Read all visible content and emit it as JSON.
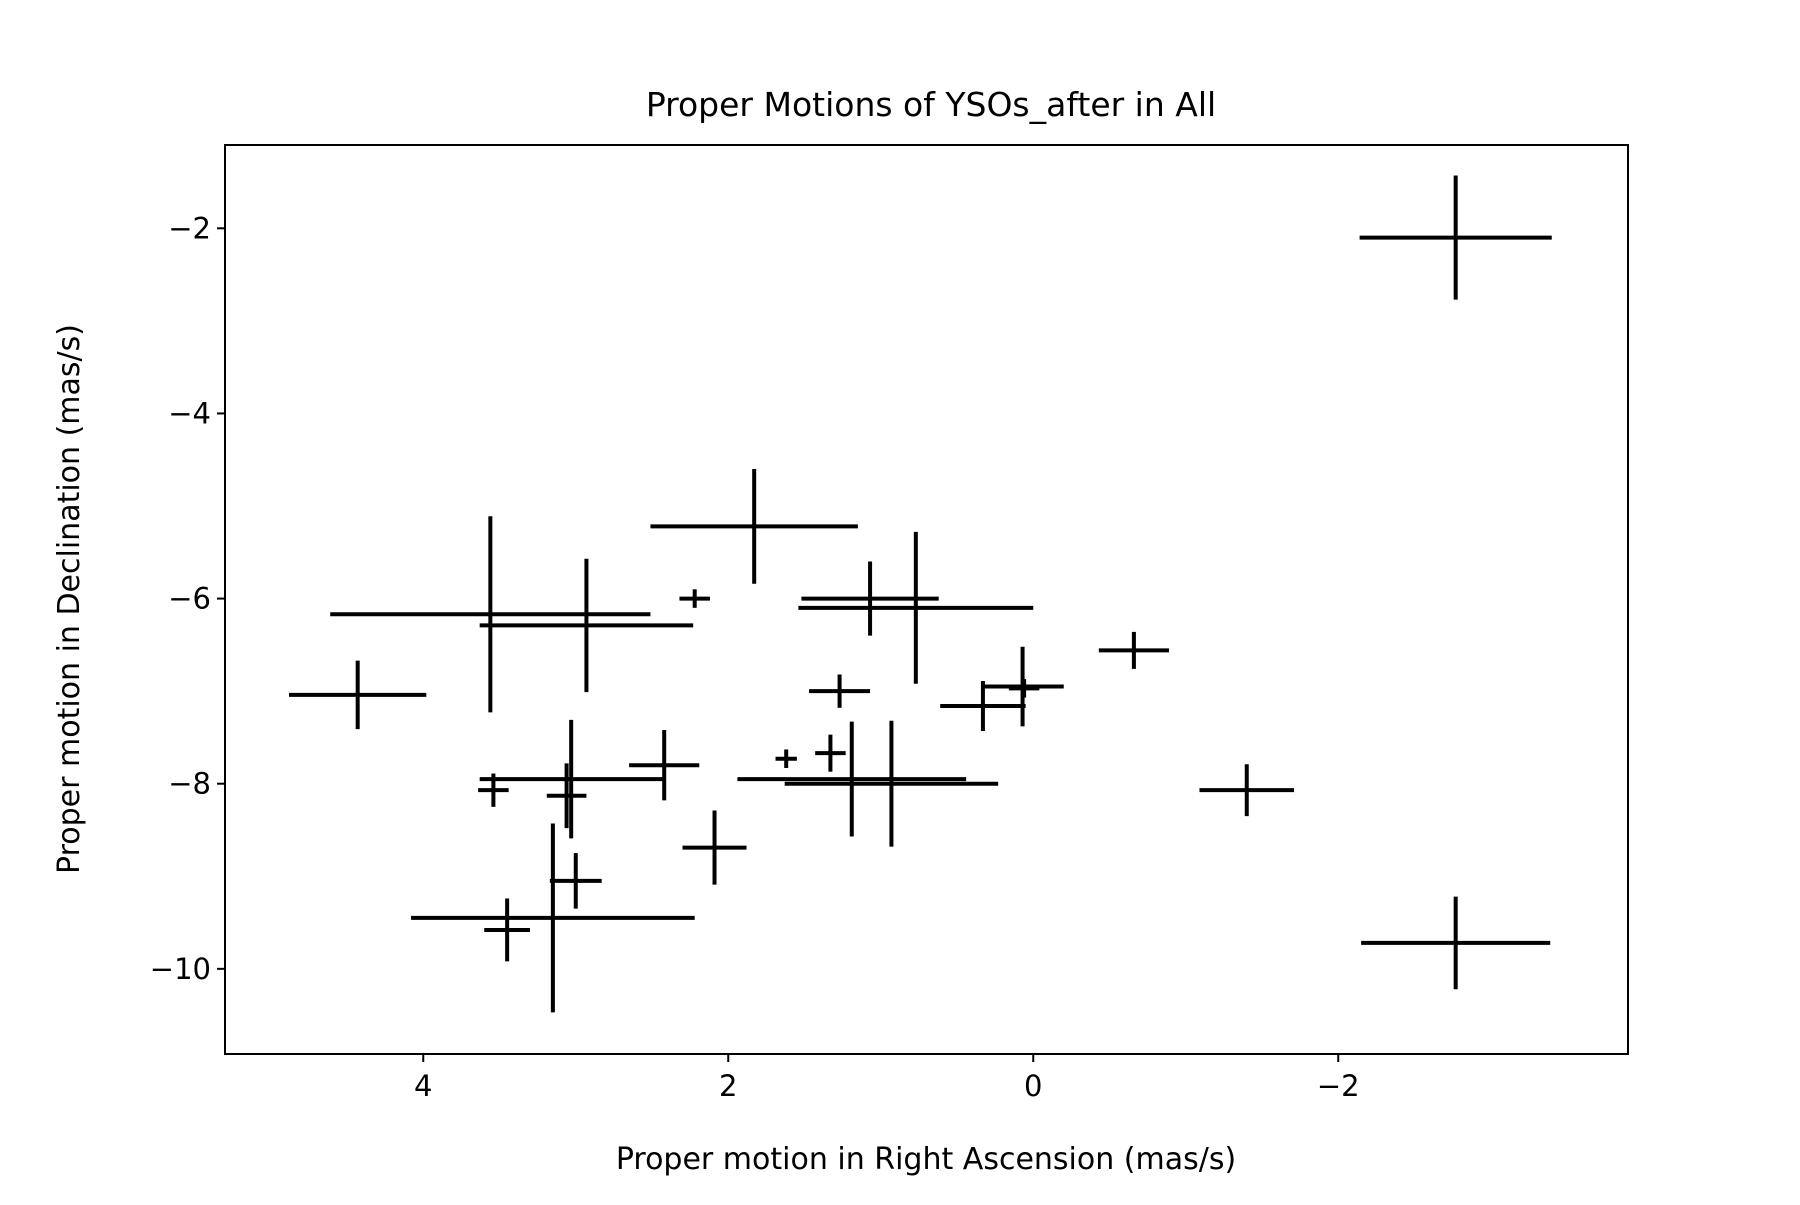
{
  "chart_data": {
    "type": "scatter",
    "title": "Proper Motions of YSOs_after in All",
    "xlabel": "Proper motion in Right Ascension (mas/s)",
    "ylabel": "Proper motion in Declination (mas/s)",
    "x_inverted": true,
    "xlim": [
      5.3,
      -3.9
    ],
    "ylim": [
      -10.92,
      -1.1
    ],
    "xticks": [
      4,
      2,
      0,
      -2
    ],
    "xtick_labels": [
      "4",
      "2",
      "0",
      "−2"
    ],
    "yticks": [
      -2,
      -4,
      -6,
      -8,
      -10
    ],
    "ytick_labels": [
      "−2",
      "−4",
      "−6",
      "−8",
      "−10"
    ],
    "grid": false,
    "legend": "none",
    "marker_color": "#000000",
    "points": [
      {
        "x": 1.83,
        "y": -5.22,
        "xerr": 0.68,
        "yerr": 0.62
      },
      {
        "x": 3.56,
        "y": -6.17,
        "xerr": 1.05,
        "yerr": 1.06
      },
      {
        "x": 2.93,
        "y": -6.29,
        "xerr": 0.7,
        "yerr": 0.72
      },
      {
        "x": 2.22,
        "y": -6.0,
        "xerr": 0.1,
        "yerr": 0.1
      },
      {
        "x": 1.07,
        "y": -6.0,
        "xerr": 0.45,
        "yerr": 0.4
      },
      {
        "x": 0.77,
        "y": -6.1,
        "xerr": 0.77,
        "yerr": 0.82
      },
      {
        "x": 4.43,
        "y": -7.04,
        "xerr": 0.45,
        "yerr": 0.37
      },
      {
        "x": 1.27,
        "y": -7.0,
        "xerr": 0.2,
        "yerr": 0.18
      },
      {
        "x": 0.33,
        "y": -7.16,
        "xerr": 0.28,
        "yerr": 0.27
      },
      {
        "x": 0.07,
        "y": -6.95,
        "xerr": 0.27,
        "yerr": 0.43
      },
      {
        "x": 0.06,
        "y": -6.97,
        "xerr": 0.1,
        "yerr": 0.1
      },
      {
        "x": -0.66,
        "y": -6.56,
        "xerr": 0.23,
        "yerr": 0.2
      },
      {
        "x": -2.77,
        "y": -2.1,
        "xerr": 0.63,
        "yerr": 0.67
      },
      {
        "x": -1.4,
        "y": -8.07,
        "xerr": 0.31,
        "yerr": 0.28
      },
      {
        "x": -2.77,
        "y": -9.72,
        "xerr": 0.62,
        "yerr": 0.5
      },
      {
        "x": 3.54,
        "y": -8.07,
        "xerr": 0.1,
        "yerr": 0.18
      },
      {
        "x": 3.06,
        "y": -8.13,
        "xerr": 0.13,
        "yerr": 0.35
      },
      {
        "x": 3.03,
        "y": -7.95,
        "xerr": 0.6,
        "yerr": 0.64
      },
      {
        "x": 2.42,
        "y": -7.8,
        "xerr": 0.23,
        "yerr": 0.38
      },
      {
        "x": 1.62,
        "y": -7.73,
        "xerr": 0.07,
        "yerr": 0.1
      },
      {
        "x": 1.33,
        "y": -7.67,
        "xerr": 0.1,
        "yerr": 0.2
      },
      {
        "x": 1.19,
        "y": -7.95,
        "xerr": 0.75,
        "yerr": 0.62
      },
      {
        "x": 0.93,
        "y": -8.0,
        "xerr": 0.7,
        "yerr": 0.68
      },
      {
        "x": 2.09,
        "y": -8.69,
        "xerr": 0.21,
        "yerr": 0.4
      },
      {
        "x": 3.0,
        "y": -9.05,
        "xerr": 0.17,
        "yerr": 0.3
      },
      {
        "x": 3.45,
        "y": -9.58,
        "xerr": 0.15,
        "yerr": 0.34
      },
      {
        "x": 3.15,
        "y": -9.45,
        "xerr": 0.93,
        "yerr": 1.02
      }
    ]
  }
}
